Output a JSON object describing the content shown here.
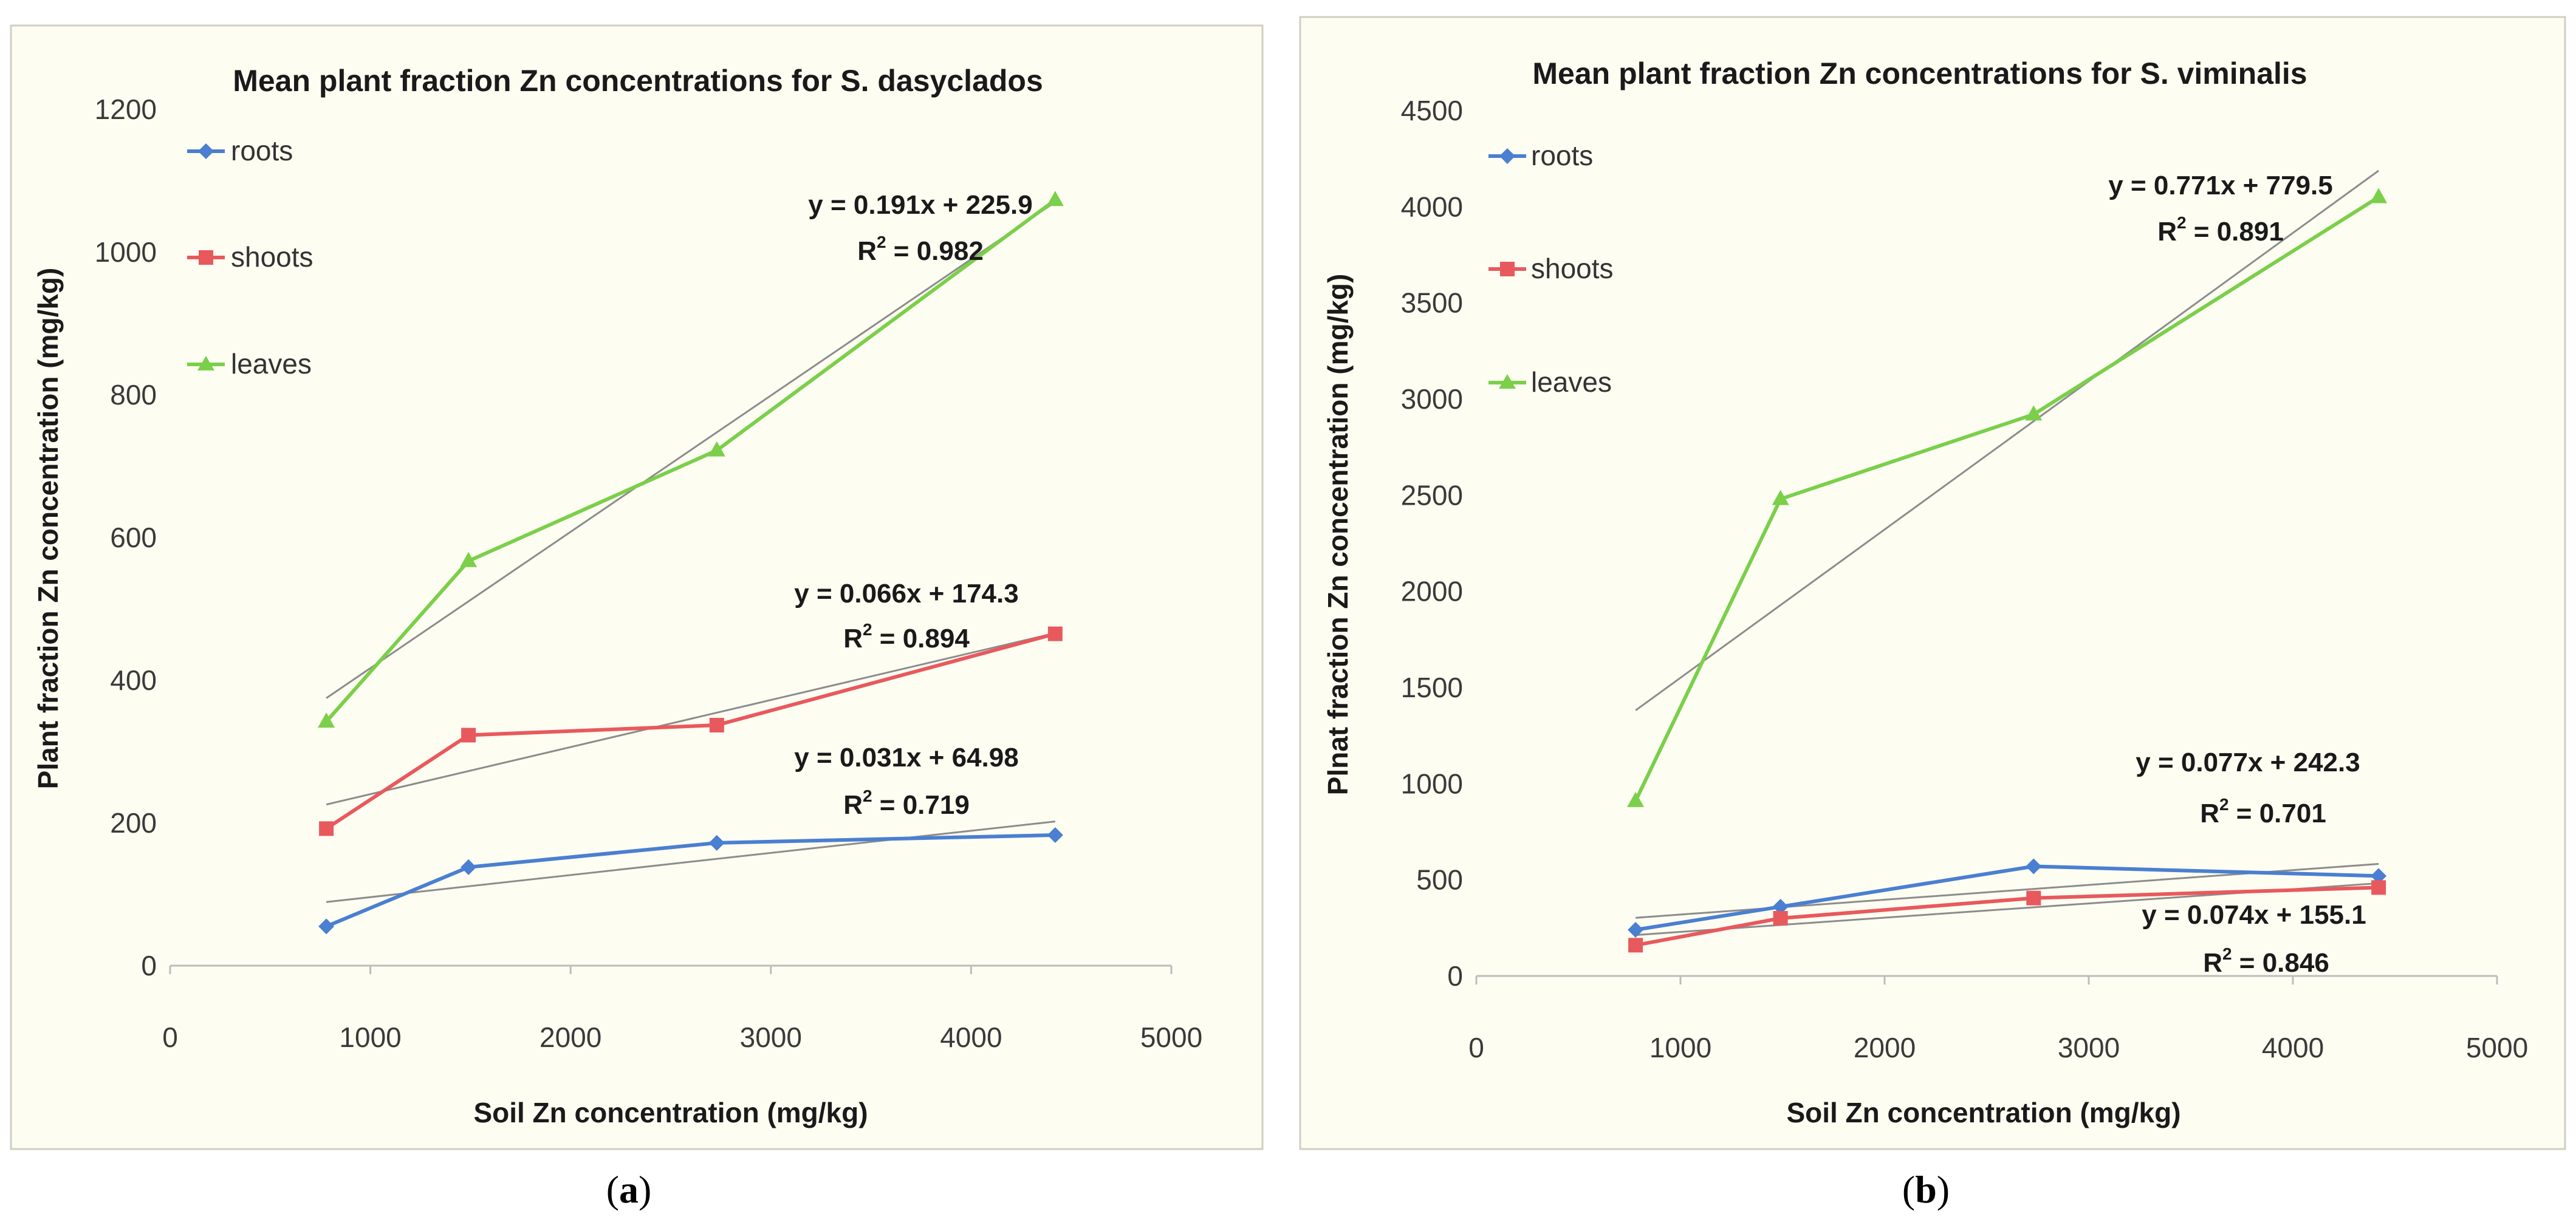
{
  "chart_data": [
    {
      "type": "line",
      "panel_label": "a",
      "title": "Mean plant fraction Zn concentrations for S. dasyclados",
      "xlabel": "Soil Zn concentration (mg/kg)",
      "ylabel": "Plant fraction Zn concentration (mg/kg)",
      "xlim": [
        0,
        5000
      ],
      "ylim": [
        0,
        1200
      ],
      "x_ticks": [
        0,
        1000,
        2000,
        3000,
        4000,
        5000
      ],
      "y_ticks": [
        0,
        200,
        400,
        600,
        800,
        1000,
        1200
      ],
      "x": [
        780,
        1490,
        2730,
        4420
      ],
      "series": [
        {
          "name": "roots",
          "color": "#4a7fd1",
          "marker": "diamond",
          "values": [
            55,
            138,
            172,
            183
          ]
        },
        {
          "name": "shoots",
          "color": "#e8595d",
          "marker": "square",
          "values": [
            192,
            323,
            337,
            465
          ]
        },
        {
          "name": "leaves",
          "color": "#7bcf4a",
          "marker": "triangle",
          "values": [
            342,
            567,
            722,
            1073
          ]
        }
      ],
      "trendlines": [
        {
          "series": "leaves",
          "slope": 0.191,
          "intercept": 225.9,
          "equation": "y = 0.191x + 225.9",
          "r2_prefix": "R",
          "r2_exp": "2",
          "r2_value": " = 0.982"
        },
        {
          "series": "shoots",
          "slope": 0.066,
          "intercept": 174.3,
          "equation": "y = 0.066x + 174.3",
          "r2_prefix": "R",
          "r2_exp": "2",
          "r2_value": " = 0.894"
        },
        {
          "series": "roots",
          "slope": 0.031,
          "intercept": 64.98,
          "equation": "y = 0.031x + 64.98",
          "r2_prefix": "R",
          "r2_exp": "2",
          "r2_value": " = 0.719"
        }
      ]
    },
    {
      "type": "line",
      "panel_label": "b",
      "title": "Mean plant fraction Zn concentrations for S. viminalis",
      "xlabel": "Soil Zn concentration (mg/kg)",
      "ylabel": "Plnat fraction Zn concentration (mg/kg)",
      "xlim": [
        0,
        5000
      ],
      "ylim": [
        0,
        4500
      ],
      "x_ticks": [
        0,
        1000,
        2000,
        3000,
        4000,
        5000
      ],
      "y_ticks": [
        0,
        500,
        1000,
        1500,
        2000,
        2500,
        3000,
        3500,
        4000,
        4500
      ],
      "x": [
        780,
        1490,
        2730,
        4420
      ],
      "series": [
        {
          "name": "roots",
          "color": "#4a7fd1",
          "marker": "diamond",
          "values": [
            240,
            360,
            570,
            520
          ]
        },
        {
          "name": "shoots",
          "color": "#e8595d",
          "marker": "square",
          "values": [
            160,
            300,
            405,
            460
          ]
        },
        {
          "name": "leaves",
          "color": "#7bcf4a",
          "marker": "triangle",
          "values": [
            910,
            2480,
            2920,
            4050
          ]
        }
      ],
      "trendlines": [
        {
          "series": "leaves",
          "slope": 0.771,
          "intercept": 779.5,
          "equation": "y = 0.771x + 779.5",
          "r2_prefix": "R",
          "r2_exp": "2",
          "r2_value": " = 0.891"
        },
        {
          "series": "roots",
          "slope": 0.077,
          "intercept": 242.3,
          "equation": "y = 0.077x + 242.3",
          "r2_prefix": "R",
          "r2_exp": "2",
          "r2_value": " = 0.701"
        },
        {
          "series": "shoots",
          "slope": 0.074,
          "intercept": 155.1,
          "equation": "y = 0.074x + 155.1",
          "r2_prefix": "R",
          "r2_exp": "2",
          "r2_value": " = 0.846"
        }
      ]
    }
  ],
  "captions": [
    {
      "open": "(",
      "letter": "a",
      "close": ")"
    },
    {
      "open": "(",
      "letter": "b",
      "close": ")"
    }
  ]
}
